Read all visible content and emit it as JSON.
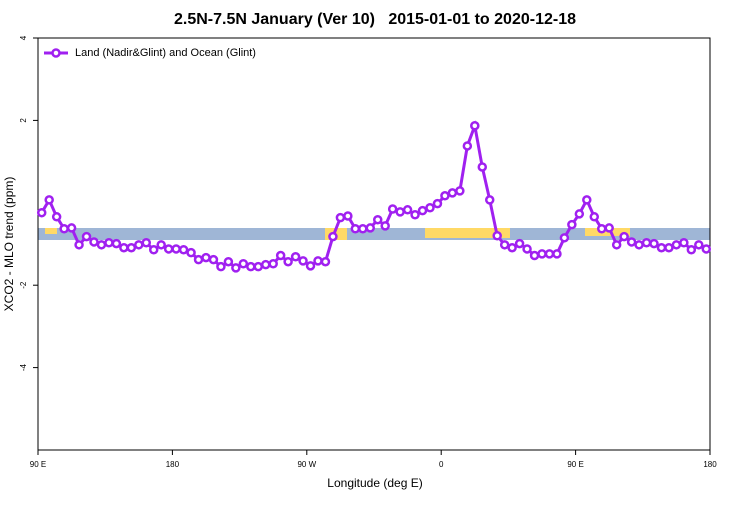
{
  "chart_data": {
    "type": "line",
    "title": "2.5N-7.5N January (Ver 10)   2015-01-01 to 2020-12-18",
    "x_label": "Longitude (deg E)",
    "y_label": "XCO2 - MLO trend (ppm)",
    "legend": "top-left",
    "xlim": [
      90,
      540
    ],
    "ylim": [
      -6,
      4
    ],
    "xticks": [
      {
        "value": 90,
        "label": "90 E"
      },
      180,
      {
        "value": 270,
        "label": "90 W"
      },
      {
        "value": 360,
        "label": "0"
      },
      {
        "value": 450,
        "label": "90 E"
      },
      {
        "value": 540,
        "label": "180"
      }
    ],
    "yticks": [
      -4,
      -2,
      2,
      4
    ],
    "x": [
      92.5,
      97.5,
      102.5,
      107.5,
      112.5,
      117.5,
      122.5,
      127.5,
      132.5,
      137.5,
      142.5,
      147.5,
      152.5,
      157.5,
      162.5,
      167.5,
      172.5,
      177.5,
      182.5,
      187.5,
      192.5,
      197.5,
      202.5,
      207.5,
      212.5,
      217.5,
      222.5,
      227.5,
      232.5,
      237.5,
      242.5,
      247.5,
      252.5,
      257.5,
      262.5,
      267.5,
      272.5,
      277.5,
      282.5,
      287.5,
      292.5,
      297.5,
      302.5,
      307.5,
      312.5,
      317.5,
      322.5,
      327.5,
      332.5,
      337.5,
      342.5,
      347.5,
      352.5,
      357.5,
      362.5,
      367.5,
      372.5,
      377.5,
      382.5,
      387.5,
      392.5,
      397.5,
      402.5,
      407.5,
      412.5,
      417.5,
      422.5,
      427.5,
      432.5,
      437.5,
      442.5,
      447.5,
      452.5,
      457.5,
      462.5,
      467.5,
      472.5,
      477.5,
      482.5,
      487.5,
      492.5,
      497.5,
      502.5,
      507.5,
      512.5,
      517.5,
      522.5,
      527.5,
      532.5,
      537.5
    ],
    "series": [
      {
        "name": "Land (Nadir&Glint) and Ocean (Glint)",
        "color": "#a020f0",
        "values": [
          -0.24,
          0.07,
          -0.34,
          -0.63,
          -0.61,
          -1.02,
          -0.82,
          -0.95,
          -1.02,
          -0.97,
          -0.99,
          -1.09,
          -1.09,
          -1.02,
          -0.97,
          -1.14,
          -1.02,
          -1.12,
          -1.12,
          -1.14,
          -1.21,
          -1.38,
          -1.33,
          -1.38,
          -1.55,
          -1.43,
          -1.58,
          -1.48,
          -1.55,
          -1.55,
          -1.5,
          -1.48,
          -1.28,
          -1.43,
          -1.31,
          -1.41,
          -1.53,
          -1.41,
          -1.43,
          -0.82,
          -0.36,
          -0.32,
          -0.63,
          -0.63,
          -0.61,
          -0.41,
          -0.56,
          -0.15,
          -0.22,
          -0.17,
          -0.29,
          -0.19,
          -0.12,
          -0.02,
          0.17,
          0.24,
          0.29,
          1.38,
          1.87,
          0.87,
          0.07,
          -0.8,
          -1.02,
          -1.09,
          -0.99,
          -1.12,
          -1.28,
          -1.24,
          -1.24,
          -1.24,
          -0.85,
          -0.53,
          -0.27,
          0.07,
          -0.34,
          -0.63,
          -0.61,
          -1.02,
          -0.82,
          -0.95,
          -1.02,
          -0.97,
          -0.99,
          -1.09,
          -1.09,
          -1.02,
          -0.97,
          -1.14,
          -1.02,
          -1.12
        ]
      }
    ]
  }
}
